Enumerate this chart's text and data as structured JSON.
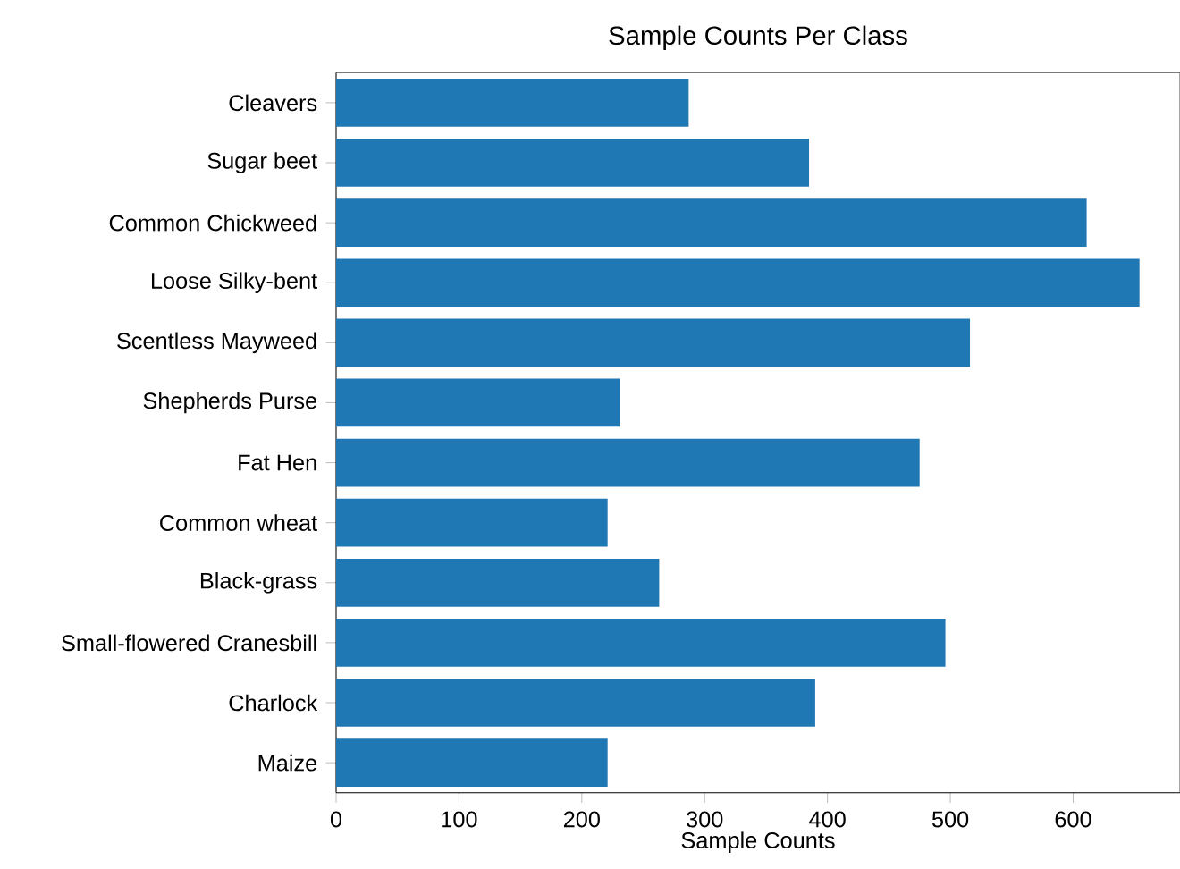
{
  "chart_data": {
    "type": "bar",
    "orientation": "horizontal",
    "title": "Sample Counts Per Class",
    "xlabel": "Sample Counts",
    "categories": [
      "Cleavers",
      "Sugar beet",
      "Common Chickweed",
      "Loose Silky-bent",
      "Scentless Mayweed",
      "Shepherds Purse",
      "Fat Hen",
      "Common wheat",
      "Black-grass",
      "Small-flowered Cranesbill",
      "Charlock",
      "Maize"
    ],
    "values": [
      287,
      385,
      611,
      654,
      516,
      231,
      475,
      221,
      263,
      496,
      390,
      221
    ],
    "color": "#1f77b4",
    "xlim": [
      0,
      687
    ],
    "xticks": [
      0,
      100,
      200,
      300,
      400,
      500,
      600
    ]
  }
}
